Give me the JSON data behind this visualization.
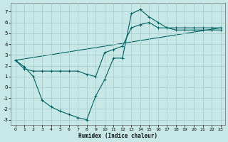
{
  "xlabel": "Humidex (Indice chaleur)",
  "background_color": "#c8e8e8",
  "grid_color": "#a8cccc",
  "line_color": "#006060",
  "xlim": [
    -0.5,
    23.5
  ],
  "ylim": [
    -3.5,
    7.8
  ],
  "yticks": [
    -3,
    -2,
    -1,
    0,
    1,
    2,
    3,
    4,
    5,
    6,
    7
  ],
  "xticks": [
    0,
    1,
    2,
    3,
    4,
    5,
    6,
    7,
    8,
    9,
    10,
    11,
    12,
    13,
    14,
    15,
    16,
    17,
    18,
    19,
    20,
    21,
    22,
    23
  ],
  "series1_x": [
    0,
    1,
    2,
    3,
    4,
    5,
    6,
    7,
    8,
    9,
    10,
    11,
    12,
    13,
    14,
    15,
    16,
    17,
    18,
    19,
    20,
    21,
    22,
    23
  ],
  "series1_y": [
    2.5,
    1.9,
    1.0,
    -1.2,
    -1.8,
    -2.2,
    -2.5,
    -2.8,
    -3.0,
    -0.8,
    0.7,
    2.7,
    2.7,
    6.8,
    7.2,
    6.5,
    6.0,
    5.5,
    5.5,
    5.5,
    5.5,
    5.5,
    5.5,
    5.5
  ],
  "series2_x": [
    0,
    1,
    2,
    3,
    4,
    5,
    6,
    7,
    8,
    9,
    10,
    11,
    12,
    13,
    14,
    15,
    16,
    17,
    18,
    19,
    20,
    21,
    22,
    23
  ],
  "series2_y": [
    2.5,
    1.7,
    1.5,
    1.5,
    1.5,
    1.5,
    1.5,
    1.5,
    1.2,
    1.0,
    3.2,
    3.5,
    3.8,
    5.5,
    5.8,
    6.0,
    5.5,
    5.5,
    5.3,
    5.3,
    5.3,
    5.3,
    5.3,
    5.3
  ],
  "series3_x": [
    0,
    23
  ],
  "series3_y": [
    2.5,
    5.5
  ]
}
